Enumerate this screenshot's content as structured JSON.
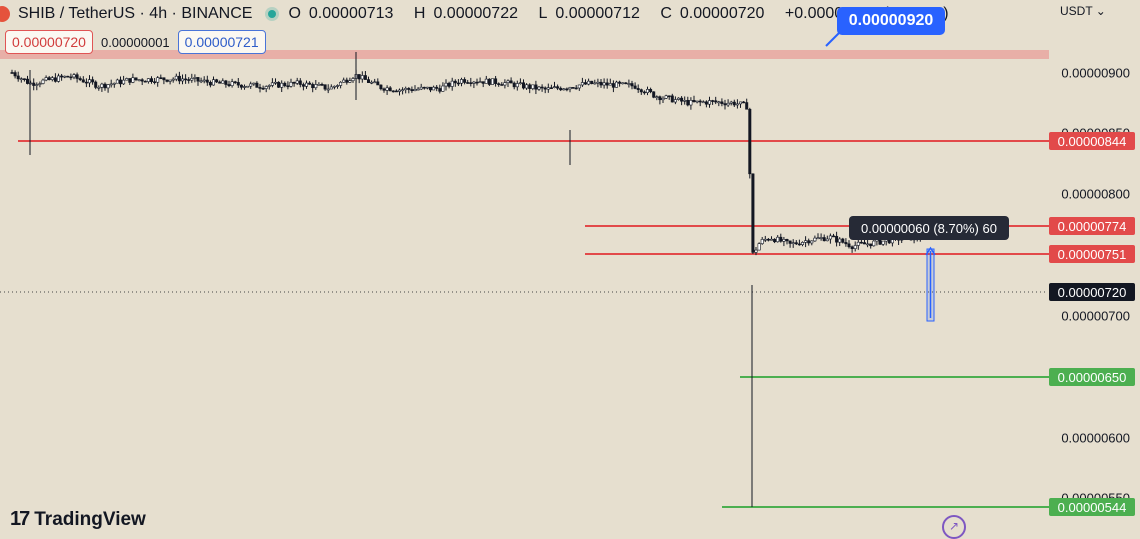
{
  "header": {
    "symbol": "SHIB / TetherUS · 4h · BINANCE",
    "open_label": "O",
    "open": "0.00000713",
    "high_label": "H",
    "high": "0.00000722",
    "low_label": "L",
    "low": "0.00000712",
    "close_label": "C",
    "close": "0.00000720",
    "change": "+0.00000007 (+0.98%)"
  },
  "trade_panel": {
    "sell_price": "0.00000720",
    "spread": "0.00000001",
    "buy_price": "0.00000721"
  },
  "callout": {
    "text": "0.00000920"
  },
  "currency": "USDT",
  "chevron_icon": "chevron-down-icon",
  "price_axis": {
    "labels": [
      "0.00000900",
      "0.00000850",
      "0.00000800",
      "0.00000700",
      "0.00000600",
      "0.00000550"
    ]
  },
  "levels": {
    "resistance_zone": "0.00000920",
    "red": [
      "0.00000844",
      "0.00000774",
      "0.00000751"
    ],
    "green": [
      "0.00000650",
      "0.00000544"
    ],
    "current": "0.00000720"
  },
  "measure": {
    "text": "0.00000060 (8.70%) 60"
  },
  "brand": {
    "name": "TradingView",
    "icon": "tradingview-logo-icon"
  },
  "colors": {
    "background": "#e6dfcf",
    "resistance": "#e24a4a",
    "support": "#4caf50",
    "callout": "#2962ff",
    "measure": "#2962ff"
  }
}
